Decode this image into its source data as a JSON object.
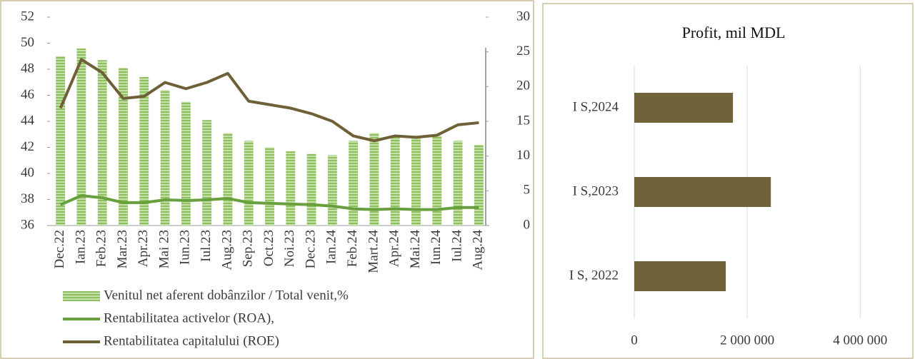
{
  "chart_data": [
    {
      "type": "combo",
      "categories": [
        "Dec.22",
        "Ian.23",
        "Feb.23",
        "Mar.23",
        "Apr.23",
        "Mai 23",
        "Iun.23",
        "Iul.23",
        "Aug.23",
        "Sep.23",
        "Oct.23",
        "Noi.23",
        "Dec.23",
        "Ian.24",
        "Feb.24",
        "Mart.24",
        "Apr.24",
        "Mai.24",
        "Iun.24",
        "Iul.24",
        "Aug.24"
      ],
      "series": [
        {
          "name": "Venitul net aferent dobânzilor / Total venit,%",
          "type": "bar",
          "axis": "y",
          "color": "#9cc870",
          "values": [
            49.0,
            49.6,
            48.7,
            48.1,
            47.4,
            46.4,
            45.5,
            44.1,
            43.1,
            42.5,
            42.0,
            41.7,
            41.5,
            41.4,
            42.5,
            43.1,
            42.8,
            42.8,
            42.9,
            42.5,
            42.2
          ]
        },
        {
          "name": "Rentabilitatea activelor (ROA),",
          "type": "line",
          "axis": "y2",
          "color": "#67a03c",
          "values": [
            3.0,
            4.3,
            4.0,
            3.3,
            3.3,
            3.7,
            3.6,
            3.7,
            3.9,
            3.3,
            3.2,
            3.1,
            3.0,
            2.8,
            2.4,
            2.3,
            2.4,
            2.3,
            2.3,
            2.6,
            2.6
          ]
        },
        {
          "name": "Rentabilitatea capitalului (ROE)",
          "type": "line",
          "axis": "y2",
          "color": "#6e6138",
          "values": [
            16.9,
            23.9,
            22.0,
            18.3,
            18.6,
            20.6,
            19.7,
            20.6,
            21.9,
            17.9,
            17.4,
            16.9,
            16.1,
            15.0,
            12.9,
            12.2,
            12.9,
            12.7,
            13.0,
            14.5,
            14.8
          ]
        }
      ],
      "ylim": [
        36,
        52
      ],
      "yticks": [
        36,
        38,
        40,
        42,
        44,
        46,
        48,
        50,
        52
      ],
      "y2lim": [
        0,
        30
      ],
      "y2ticks": [
        0,
        5,
        10,
        15,
        20,
        25,
        30
      ],
      "legend": "bottom"
    },
    {
      "type": "hbar",
      "title": "Profit, mil MDL",
      "categories": [
        "I S, 2022",
        "I S,2023",
        "I S,2024"
      ],
      "values": [
        1620000,
        2418000,
        1747000
      ],
      "color": "#6e633a",
      "xlim": [
        0,
        4730000
      ],
      "xticks": [
        0,
        {
          "value": 2000000,
          "label": "2 000 000"
        },
        {
          "value": 4000000,
          "label": "4 000 000"
        }
      ],
      "grid": true
    }
  ]
}
